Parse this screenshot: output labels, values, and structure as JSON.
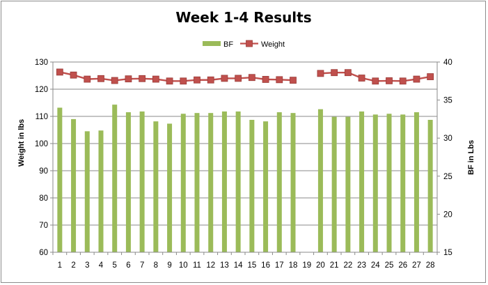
{
  "chart_data": {
    "type": "bar",
    "title": "Week 1-4 Results",
    "categories": [
      "1",
      "2",
      "3",
      "4",
      "5",
      "6",
      "7",
      "8",
      "9",
      "10",
      "11",
      "12",
      "13",
      "14",
      "15",
      "16",
      "17",
      "18",
      "19",
      "20",
      "21",
      "22",
      "23",
      "24",
      "25",
      "26",
      "27",
      "28"
    ],
    "series": [
      {
        "name": "BF",
        "chart": "bar",
        "axis": "right",
        "color": "#9bbb59",
        "values": [
          34.0,
          32.5,
          30.9,
          31.0,
          34.4,
          33.4,
          33.5,
          32.2,
          31.9,
          33.2,
          33.3,
          33.3,
          33.5,
          33.5,
          32.4,
          32.2,
          33.4,
          33.3,
          null,
          33.8,
          32.8,
          32.8,
          33.5,
          33.1,
          33.2,
          33.1,
          33.4,
          32.4
        ]
      },
      {
        "name": "Weight",
        "chart": "line",
        "axis": "left",
        "color": "#c0504d",
        "marker": "square",
        "values": [
          126.3,
          125.2,
          123.7,
          123.9,
          123.2,
          123.8,
          123.9,
          123.7,
          123.0,
          123.0,
          123.4,
          123.4,
          124.0,
          124.0,
          124.3,
          123.6,
          123.5,
          123.3,
          null,
          125.8,
          126.1,
          126.1,
          124.1,
          123.0,
          123.1,
          123.0,
          123.7,
          124.6
        ]
      }
    ],
    "ylabel": "Weight in lbs",
    "ylim": [
      60,
      130
    ],
    "yticks": [
      "60",
      "70",
      "80",
      "90",
      "100",
      "110",
      "120",
      "130"
    ],
    "y2label": "BF in Lbs",
    "y2lim": [
      15,
      40
    ],
    "y2ticks": [
      "15",
      "20",
      "25",
      "30",
      "35",
      "40"
    ],
    "grid": "horizontal",
    "legend": "top-center"
  }
}
